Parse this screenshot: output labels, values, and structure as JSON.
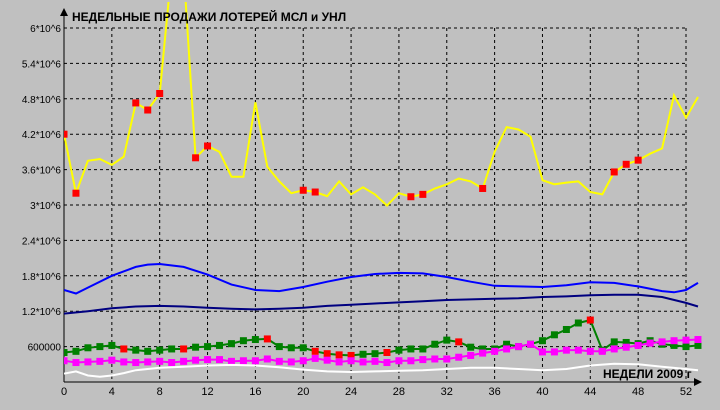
{
  "chart_data": {
    "type": "line",
    "title": "НЕДЕЛЬНЫЕ ПРОДАЖИ ЛОТЕРЕЙ МСЛ и УНЛ",
    "xlabel": "НЕДЕЛИ 2009 г",
    "ylabel": "",
    "xlim": [
      0,
      52
    ],
    "ylim": [
      0,
      6000000
    ],
    "grid": true,
    "x_ticks": [
      "0",
      "4",
      "8",
      "12",
      "16",
      "20",
      "24",
      "28",
      "32",
      "36",
      "40",
      "44",
      "48",
      "52"
    ],
    "y_ticks": [
      "600000",
      "1.2*10^6",
      "1.8*10^6",
      "2.4*10^6",
      "3*10^6",
      "3.6*10^6",
      "4.2*10^6",
      "4.8*10^6",
      "5.4*10^6",
      "6*10^6"
    ],
    "colors": {
      "background": "#c0c0c0",
      "grid": "#000000",
      "yellow": "#ffff00",
      "red_marker": "#ff0000",
      "blue": "#0000ff",
      "navy": "#000080",
      "green": "#008000",
      "green_marker": "#008000",
      "magenta": "#ff00ff",
      "white": "#ffffff"
    },
    "series": [
      {
        "color": "yellow",
        "marker": "square",
        "values": [
          [
            0,
            4200000
          ],
          [
            1,
            3200000
          ],
          [
            2,
            3750000
          ],
          [
            3,
            3780000
          ],
          [
            4,
            3680000
          ],
          [
            5,
            3820000
          ],
          [
            6,
            4730000
          ],
          [
            7,
            4610000
          ],
          [
            8,
            4890000
          ],
          [
            9,
            7000000
          ],
          [
            10,
            7000000
          ],
          [
            11,
            3800000
          ],
          [
            12,
            4000000
          ],
          [
            13,
            3900000
          ],
          [
            14,
            3480000
          ],
          [
            15,
            3480000
          ],
          [
            16,
            4740000
          ],
          [
            17,
            3650000
          ],
          [
            18,
            3400000
          ],
          [
            19,
            3200000
          ],
          [
            20,
            3250000
          ],
          [
            21,
            3220000
          ],
          [
            22,
            3150000
          ],
          [
            23,
            3400000
          ],
          [
            24,
            3180000
          ],
          [
            25,
            3300000
          ],
          [
            26,
            3180000
          ],
          [
            27,
            2990000
          ],
          [
            28,
            3200000
          ],
          [
            29,
            3140000
          ],
          [
            30,
            3180000
          ],
          [
            31,
            3280000
          ],
          [
            32,
            3350000
          ],
          [
            33,
            3450000
          ],
          [
            34,
            3400000
          ],
          [
            35,
            3280000
          ],
          [
            36,
            3900000
          ],
          [
            37,
            4320000
          ],
          [
            38,
            4280000
          ],
          [
            39,
            4160000
          ],
          [
            40,
            3420000
          ],
          [
            41,
            3350000
          ],
          [
            42,
            3380000
          ],
          [
            43,
            3400000
          ],
          [
            44,
            3220000
          ],
          [
            45,
            3180000
          ],
          [
            46,
            3560000
          ],
          [
            47,
            3690000
          ],
          [
            48,
            3760000
          ],
          [
            49,
            3870000
          ],
          [
            50,
            3960000
          ],
          [
            51,
            4860000
          ],
          [
            52,
            4480000
          ],
          [
            53,
            4830000
          ]
        ],
        "red_marker_weeks": [
          0,
          1,
          6,
          7,
          8,
          11,
          12,
          20,
          21,
          29,
          30,
          35,
          46,
          47,
          48
        ]
      },
      {
        "color": "blue",
        "marker": "none",
        "values": [
          [
            0,
            1560000
          ],
          [
            1,
            1500000
          ],
          [
            2,
            1600000
          ],
          [
            4,
            1800000
          ],
          [
            6,
            1950000
          ],
          [
            7,
            1990000
          ],
          [
            8,
            2000000
          ],
          [
            10,
            1950000
          ],
          [
            12,
            1820000
          ],
          [
            14,
            1650000
          ],
          [
            16,
            1560000
          ],
          [
            18,
            1540000
          ],
          [
            20,
            1610000
          ],
          [
            22,
            1700000
          ],
          [
            24,
            1780000
          ],
          [
            26,
            1830000
          ],
          [
            28,
            1850000
          ],
          [
            30,
            1840000
          ],
          [
            32,
            1780000
          ],
          [
            34,
            1700000
          ],
          [
            36,
            1630000
          ],
          [
            38,
            1620000
          ],
          [
            40,
            1610000
          ],
          [
            42,
            1640000
          ],
          [
            44,
            1690000
          ],
          [
            46,
            1680000
          ],
          [
            48,
            1620000
          ],
          [
            50,
            1540000
          ],
          [
            51,
            1520000
          ],
          [
            52,
            1560000
          ],
          [
            53,
            1680000
          ]
        ]
      },
      {
        "color": "navy",
        "marker": "none",
        "values": [
          [
            0,
            1160000
          ],
          [
            2,
            1200000
          ],
          [
            4,
            1250000
          ],
          [
            6,
            1280000
          ],
          [
            8,
            1290000
          ],
          [
            10,
            1280000
          ],
          [
            12,
            1260000
          ],
          [
            14,
            1240000
          ],
          [
            16,
            1230000
          ],
          [
            18,
            1240000
          ],
          [
            20,
            1260000
          ],
          [
            22,
            1290000
          ],
          [
            24,
            1310000
          ],
          [
            26,
            1330000
          ],
          [
            28,
            1350000
          ],
          [
            30,
            1370000
          ],
          [
            32,
            1390000
          ],
          [
            34,
            1400000
          ],
          [
            36,
            1410000
          ],
          [
            38,
            1420000
          ],
          [
            40,
            1440000
          ],
          [
            42,
            1450000
          ],
          [
            44,
            1470000
          ],
          [
            46,
            1480000
          ],
          [
            48,
            1480000
          ],
          [
            50,
            1440000
          ],
          [
            52,
            1340000
          ],
          [
            53,
            1280000
          ]
        ]
      },
      {
        "color": "green",
        "marker": "square",
        "values": [
          [
            0,
            500000
          ],
          [
            1,
            520000
          ],
          [
            2,
            580000
          ],
          [
            3,
            600000
          ],
          [
            4,
            620000
          ],
          [
            5,
            560000
          ],
          [
            6,
            540000
          ],
          [
            7,
            520000
          ],
          [
            8,
            540000
          ],
          [
            9,
            560000
          ],
          [
            10,
            560000
          ],
          [
            11,
            590000
          ],
          [
            12,
            600000
          ],
          [
            13,
            620000
          ],
          [
            14,
            650000
          ],
          [
            15,
            700000
          ],
          [
            16,
            720000
          ],
          [
            17,
            730000
          ],
          [
            18,
            600000
          ],
          [
            19,
            580000
          ],
          [
            20,
            580000
          ],
          [
            21,
            520000
          ],
          [
            22,
            480000
          ],
          [
            23,
            460000
          ],
          [
            24,
            450000
          ],
          [
            25,
            470000
          ],
          [
            26,
            480000
          ],
          [
            27,
            500000
          ],
          [
            28,
            540000
          ],
          [
            29,
            560000
          ],
          [
            30,
            560000
          ],
          [
            31,
            640000
          ],
          [
            32,
            710000
          ],
          [
            33,
            680000
          ],
          [
            34,
            590000
          ],
          [
            35,
            560000
          ],
          [
            36,
            560000
          ],
          [
            37,
            640000
          ],
          [
            38,
            600000
          ],
          [
            39,
            640000
          ],
          [
            40,
            700000
          ],
          [
            41,
            800000
          ],
          [
            42,
            890000
          ],
          [
            43,
            1000000
          ],
          [
            44,
            1050000
          ],
          [
            45,
            540000
          ],
          [
            46,
            680000
          ],
          [
            47,
            670000
          ],
          [
            48,
            650000
          ],
          [
            49,
            700000
          ],
          [
            50,
            640000
          ],
          [
            51,
            620000
          ],
          [
            52,
            600000
          ],
          [
            53,
            620000
          ]
        ],
        "red_marker_weeks": [
          5,
          10,
          17,
          21,
          22,
          23,
          24,
          27,
          33,
          44
        ]
      },
      {
        "color": "magenta",
        "marker": "square",
        "values": [
          [
            0,
            360000
          ],
          [
            1,
            330000
          ],
          [
            2,
            340000
          ],
          [
            3,
            350000
          ],
          [
            4,
            370000
          ],
          [
            5,
            340000
          ],
          [
            6,
            330000
          ],
          [
            7,
            340000
          ],
          [
            8,
            350000
          ],
          [
            9,
            330000
          ],
          [
            10,
            350000
          ],
          [
            11,
            370000
          ],
          [
            12,
            380000
          ],
          [
            13,
            380000
          ],
          [
            14,
            350000
          ],
          [
            15,
            360000
          ],
          [
            16,
            360000
          ],
          [
            17,
            390000
          ],
          [
            18,
            350000
          ],
          [
            19,
            340000
          ],
          [
            20,
            360000
          ],
          [
            21,
            400000
          ],
          [
            22,
            370000
          ],
          [
            23,
            340000
          ],
          [
            24,
            360000
          ],
          [
            25,
            340000
          ],
          [
            26,
            350000
          ],
          [
            27,
            330000
          ],
          [
            28,
            360000
          ],
          [
            29,
            360000
          ],
          [
            30,
            380000
          ],
          [
            31,
            390000
          ],
          [
            32,
            390000
          ],
          [
            33,
            420000
          ],
          [
            34,
            450000
          ],
          [
            35,
            490000
          ],
          [
            36,
            520000
          ],
          [
            37,
            560000
          ],
          [
            38,
            600000
          ],
          [
            39,
            640000
          ],
          [
            40,
            510000
          ],
          [
            41,
            510000
          ],
          [
            42,
            540000
          ],
          [
            43,
            540000
          ],
          [
            44,
            520000
          ],
          [
            45,
            520000
          ],
          [
            46,
            560000
          ],
          [
            47,
            590000
          ],
          [
            48,
            620000
          ],
          [
            49,
            660000
          ],
          [
            50,
            680000
          ],
          [
            51,
            700000
          ],
          [
            52,
            710000
          ],
          [
            53,
            720000
          ]
        ]
      },
      {
        "color": "white",
        "marker": "none",
        "values": [
          [
            0,
            140000
          ],
          [
            1,
            180000
          ],
          [
            2,
            110000
          ],
          [
            3,
            90000
          ],
          [
            4,
            110000
          ],
          [
            5,
            150000
          ],
          [
            6,
            200000
          ],
          [
            8,
            240000
          ],
          [
            10,
            260000
          ],
          [
            12,
            280000
          ],
          [
            14,
            290000
          ],
          [
            16,
            280000
          ],
          [
            18,
            250000
          ],
          [
            20,
            210000
          ],
          [
            22,
            180000
          ],
          [
            24,
            170000
          ],
          [
            26,
            180000
          ],
          [
            28,
            190000
          ],
          [
            30,
            200000
          ],
          [
            32,
            220000
          ],
          [
            34,
            240000
          ],
          [
            36,
            240000
          ],
          [
            38,
            220000
          ],
          [
            40,
            200000
          ],
          [
            42,
            220000
          ],
          [
            44,
            280000
          ],
          [
            46,
            310000
          ],
          [
            48,
            300000
          ],
          [
            50,
            260000
          ],
          [
            52,
            220000
          ],
          [
            53,
            200000
          ]
        ]
      }
    ]
  }
}
